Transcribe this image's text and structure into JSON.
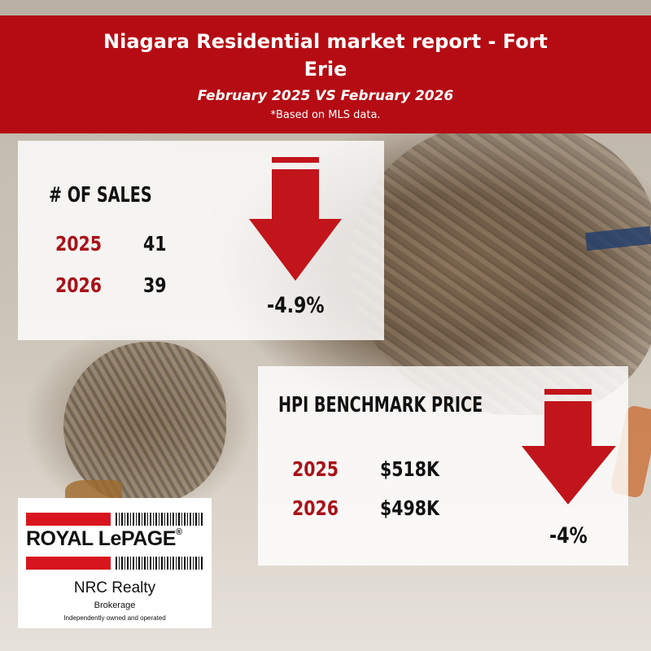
{
  "header": {
    "title": "Niagara Residential market report - Fort Erie",
    "subtitle": "February 2025 VS February 2026",
    "note": "*Based on MLS data."
  },
  "sales": {
    "heading": "# OF SALES",
    "rows": [
      {
        "year": "2025",
        "value": "41"
      },
      {
        "year": "2026",
        "value": "39"
      }
    ],
    "change": "-4.9%",
    "direction": "down-arrow-icon"
  },
  "hpi": {
    "heading": "HPI BENCHMARK PRICE",
    "rows": [
      {
        "year": "2025",
        "value": "$518K"
      },
      {
        "year": "2026",
        "value": "$498K"
      }
    ],
    "change": "-4%",
    "direction": "down-arrow-icon"
  },
  "logo": {
    "brand": "ROYAL LePAGE",
    "registered": "®",
    "office": "NRC Realty",
    "type": "Brokerage",
    "tagline": "Independently owned and operated"
  },
  "colors": {
    "header_red": "#b50c14",
    "year_red": "#a8131a",
    "arrow_red": "#c2141b"
  }
}
